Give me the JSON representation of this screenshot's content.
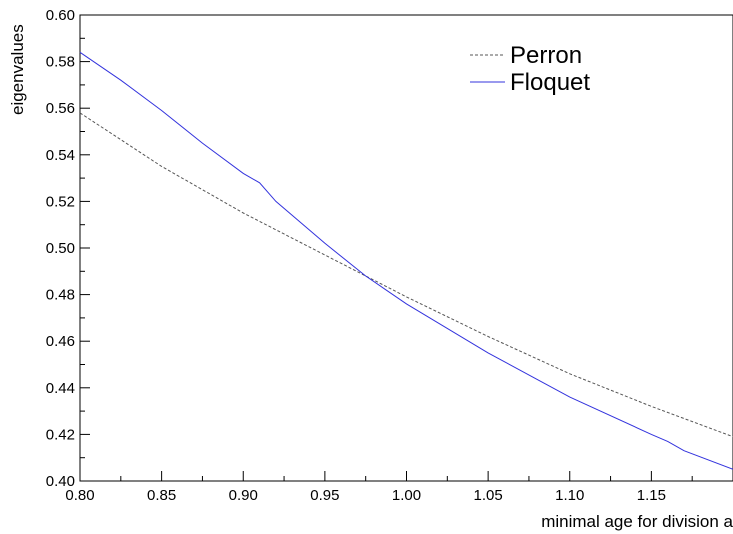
{
  "chart_data": {
    "type": "line",
    "title": "",
    "xlabel": "minimal age for division a",
    "ylabel": "eigenvalues",
    "xlim": [
      0.8,
      1.2
    ],
    "ylim": [
      0.4,
      0.6
    ],
    "xticks": [
      0.8,
      0.85,
      0.9,
      0.95,
      1.0,
      1.05,
      1.1,
      1.15
    ],
    "xtick_labels": [
      "0.80",
      "0.85",
      "0.90",
      "0.95",
      "1.00",
      "1.05",
      "1.10",
      "1.15"
    ],
    "yticks": [
      0.4,
      0.42,
      0.44,
      0.46,
      0.48,
      0.5,
      0.52,
      0.54,
      0.56,
      0.58,
      0.6
    ],
    "ytick_labels": [
      "0.40",
      "0.42",
      "0.44",
      "0.46",
      "0.48",
      "0.50",
      "0.52",
      "0.54",
      "0.56",
      "0.58",
      "0.60"
    ],
    "grid": false,
    "legend_position": "top-right",
    "series": [
      {
        "name": "Perron",
        "color": "#555555",
        "style": "dashed",
        "x": [
          0.8,
          0.85,
          0.9,
          0.95,
          1.0,
          1.05,
          1.1,
          1.15,
          1.2
        ],
        "y": [
          0.558,
          0.535,
          0.515,
          0.497,
          0.479,
          0.462,
          0.446,
          0.432,
          0.419
        ]
      },
      {
        "name": "Floquet",
        "color": "#3333dd",
        "style": "solid",
        "x": [
          0.8,
          0.825,
          0.85,
          0.875,
          0.9,
          0.91,
          0.92,
          0.95,
          0.975,
          1.0,
          1.05,
          1.1,
          1.15,
          1.16,
          1.17,
          1.2
        ],
        "y": [
          0.584,
          0.572,
          0.559,
          0.545,
          0.532,
          0.528,
          0.52,
          0.502,
          0.488,
          0.476,
          0.455,
          0.436,
          0.42,
          0.417,
          0.413,
          0.405
        ]
      }
    ]
  }
}
